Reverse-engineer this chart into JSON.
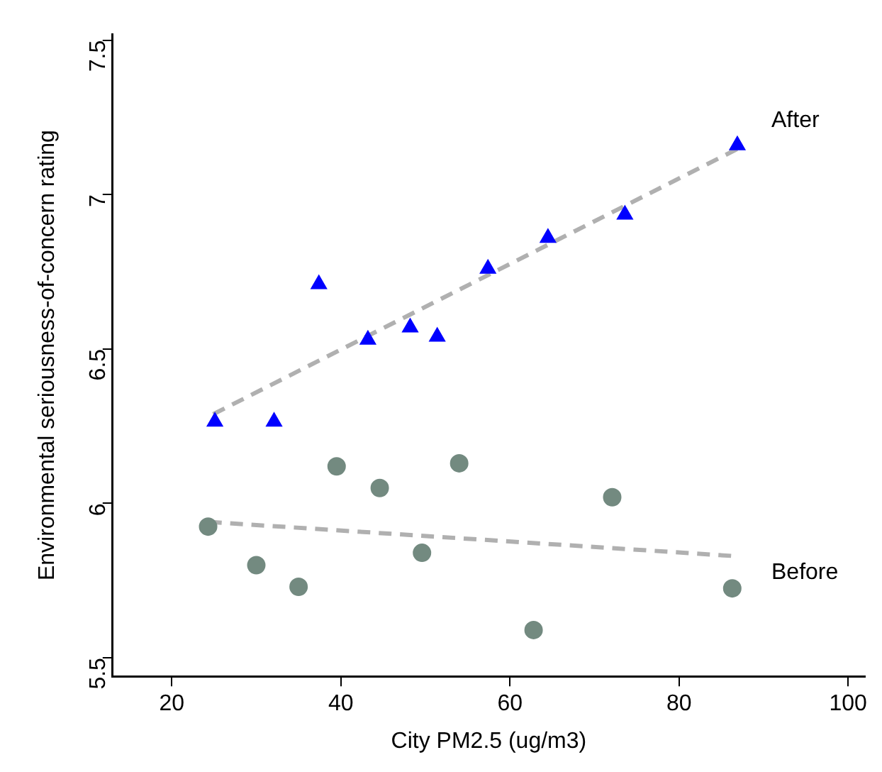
{
  "chart_data": {
    "type": "scatter",
    "xlabel": "City PM2.5 (ug/m3)",
    "ylabel": "Environmental seriousness-of-concern rating",
    "xlim": [
      13,
      102
    ],
    "xticks": [
      20,
      40,
      60,
      80,
      100
    ],
    "ylim": [
      5.44,
      7.52
    ],
    "yticks": [
      5.5,
      6,
      6.5,
      7,
      7.5
    ],
    "grid": false,
    "legend": false,
    "series": [
      {
        "name": "After",
        "type": "scatter",
        "marker": "triangle",
        "color": "#0000ff",
        "x": [
          25.1,
          32.1,
          37.4,
          43.2,
          48.2,
          51.4,
          57.4,
          64.5,
          73.6,
          86.9
        ],
        "values": [
          6.265,
          6.265,
          6.71,
          6.53,
          6.57,
          6.54,
          6.76,
          6.86,
          6.935,
          7.16
        ]
      },
      {
        "name": "Before",
        "type": "scatter",
        "marker": "circle",
        "color": "#738a80",
        "x": [
          24.3,
          30.0,
          35.0,
          39.5,
          44.6,
          49.6,
          54.0,
          62.8,
          72.1,
          86.3
        ],
        "values": [
          5.925,
          5.8,
          5.73,
          6.12,
          6.05,
          5.84,
          6.13,
          5.59,
          6.02,
          5.725
        ]
      },
      {
        "type": "line",
        "line_style": "dashed",
        "marker": "none",
        "color": "#b0b0b0",
        "x": [
          24.9,
          86.9
        ],
        "values": [
          6.289,
          7.148
        ]
      },
      {
        "type": "line",
        "line_style": "dashed",
        "marker": "none",
        "color": "#b0b0b0",
        "x": [
          24.4,
          86.3
        ],
        "values": [
          5.94,
          5.83
        ]
      }
    ]
  }
}
